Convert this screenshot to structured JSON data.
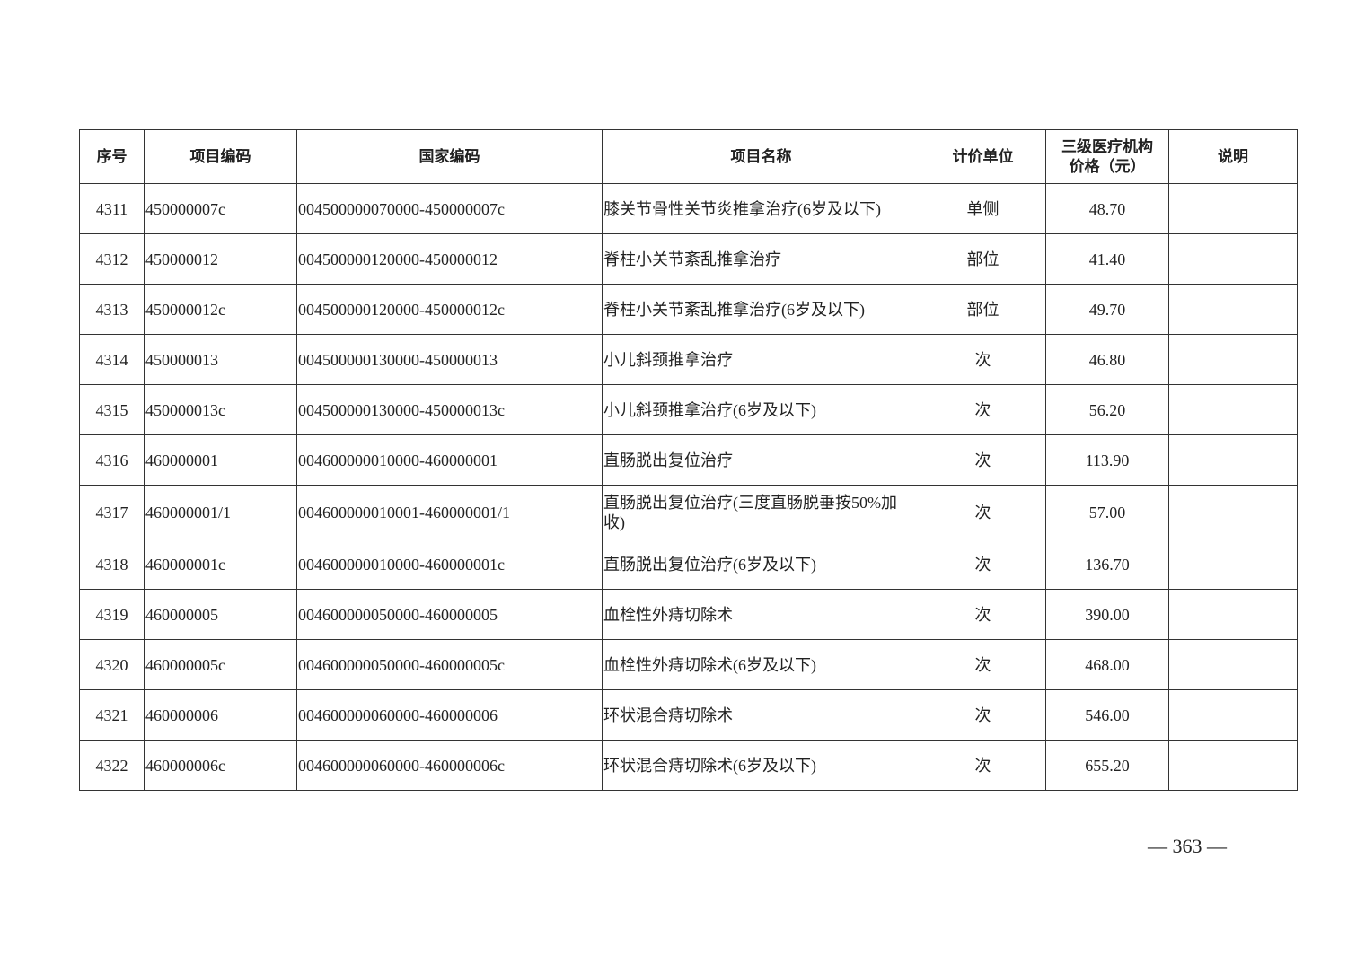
{
  "table": {
    "headers": [
      "序号",
      "项目编码",
      "国家编码",
      "项目名称",
      "计价单位",
      "三级医疗机构价格（元）",
      "说明"
    ],
    "header_price_line1": "三级医疗机构",
    "header_price_line2": "价格（元）",
    "rows": [
      [
        "4311",
        "450000007c",
        "004500000070000-450000007c",
        "膝关节骨性关节炎推拿治疗(6岁及以下)",
        "单侧",
        "48.70",
        ""
      ],
      [
        "4312",
        "450000012",
        "004500000120000-450000012",
        "脊柱小关节紊乱推拿治疗",
        "部位",
        "41.40",
        ""
      ],
      [
        "4313",
        "450000012c",
        "004500000120000-450000012c",
        "脊柱小关节紊乱推拿治疗(6岁及以下)",
        "部位",
        "49.70",
        ""
      ],
      [
        "4314",
        "450000013",
        "004500000130000-450000013",
        "小儿斜颈推拿治疗",
        "次",
        "46.80",
        ""
      ],
      [
        "4315",
        "450000013c",
        "004500000130000-450000013c",
        "小儿斜颈推拿治疗(6岁及以下)",
        "次",
        "56.20",
        ""
      ],
      [
        "4316",
        "460000001",
        "004600000010000-460000001",
        "直肠脱出复位治疗",
        "次",
        "113.90",
        ""
      ],
      [
        "4317",
        "460000001/1",
        "004600000010001-460000001/1",
        "直肠脱出复位治疗(三度直肠脱垂按50%加收)",
        "次",
        "57.00",
        ""
      ],
      [
        "4318",
        "460000001c",
        "004600000010000-460000001c",
        "直肠脱出复位治疗(6岁及以下)",
        "次",
        "136.70",
        ""
      ],
      [
        "4319",
        "460000005",
        "004600000050000-460000005",
        "血栓性外痔切除术",
        "次",
        "390.00",
        ""
      ],
      [
        "4320",
        "460000005c",
        "004600000050000-460000005c",
        "血栓性外痔切除术(6岁及以下)",
        "次",
        "468.00",
        ""
      ],
      [
        "4321",
        "460000006",
        "004600000060000-460000006",
        "环状混合痔切除术",
        "次",
        "546.00",
        ""
      ],
      [
        "4322",
        "460000006c",
        "004600000060000-460000006c",
        "环状混合痔切除术(6岁及以下)",
        "次",
        "655.20",
        ""
      ]
    ]
  },
  "page_number": "— 363 —"
}
